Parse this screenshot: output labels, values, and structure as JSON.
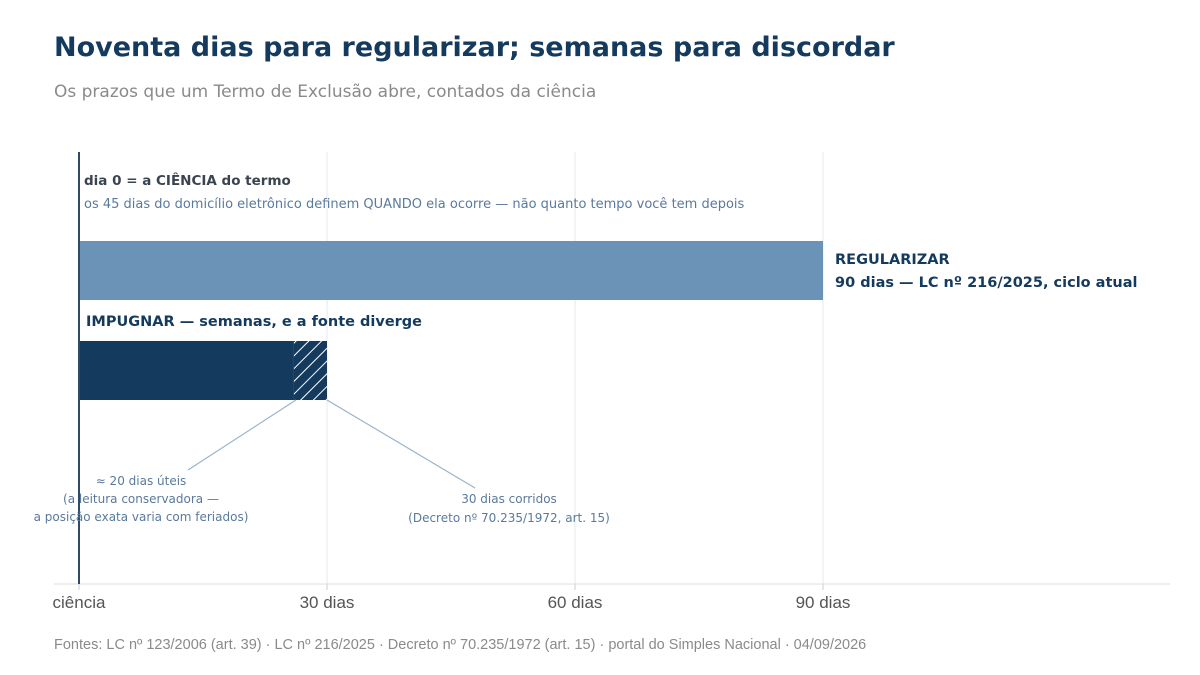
{
  "title": "Noventa dias para regularizar; semanas para discordar",
  "subtitle": "Os prazos que um Termo de Exclusão abre, contados da ciência",
  "footer": "Fontes: LC nº 123/2006 (art. 39) · LC nº 216/2025 · Decreto nº 70.235/1972 (art. 15) · portal do Simples Nacional · 04/09/2026",
  "colors": {
    "regularizar": "#6b93b7",
    "impugnar": "#143a5e",
    "grid": "#e8e8e8",
    "leader": "#9ab3cc"
  },
  "chart_data": {
    "type": "bar",
    "orientation": "horizontal",
    "xlim": [
      0,
      90
    ],
    "xticks": [
      {
        "value": 0,
        "label": "ciência"
      },
      {
        "value": 30,
        "label": "30 dias"
      },
      {
        "value": 60,
        "label": "60 dias"
      },
      {
        "value": 90,
        "label": "90 dias"
      }
    ],
    "grid": true,
    "series": [
      {
        "key": "regularizar",
        "start": 0,
        "end": 90,
        "label_title": "REGULARIZAR",
        "label_detail": "90 dias — LC nº 216/2025, ciclo atual"
      },
      {
        "key": "impugnar",
        "start": 0,
        "end": 30,
        "uncertain_from": 26,
        "label": "IMPUGNAR — semanas, e a fonte diverge"
      }
    ],
    "annotations": {
      "day0_title": "dia 0 = a CIÊNCIA do termo",
      "day0_note": "os 45 dias do domicílio eletrônico definem QUANDO ela ocorre — não quanto tempo você tem depois",
      "uteis_lines": [
        "≈ 20 dias úteis",
        "(a leitura conservadora —",
        "a posição exata varia com feriados)"
      ],
      "uteis_value": 26,
      "corridos_lines": [
        "30 dias corridos",
        "(Decreto nº 70.235/1972, art. 15)"
      ],
      "corridos_value": 30
    }
  }
}
